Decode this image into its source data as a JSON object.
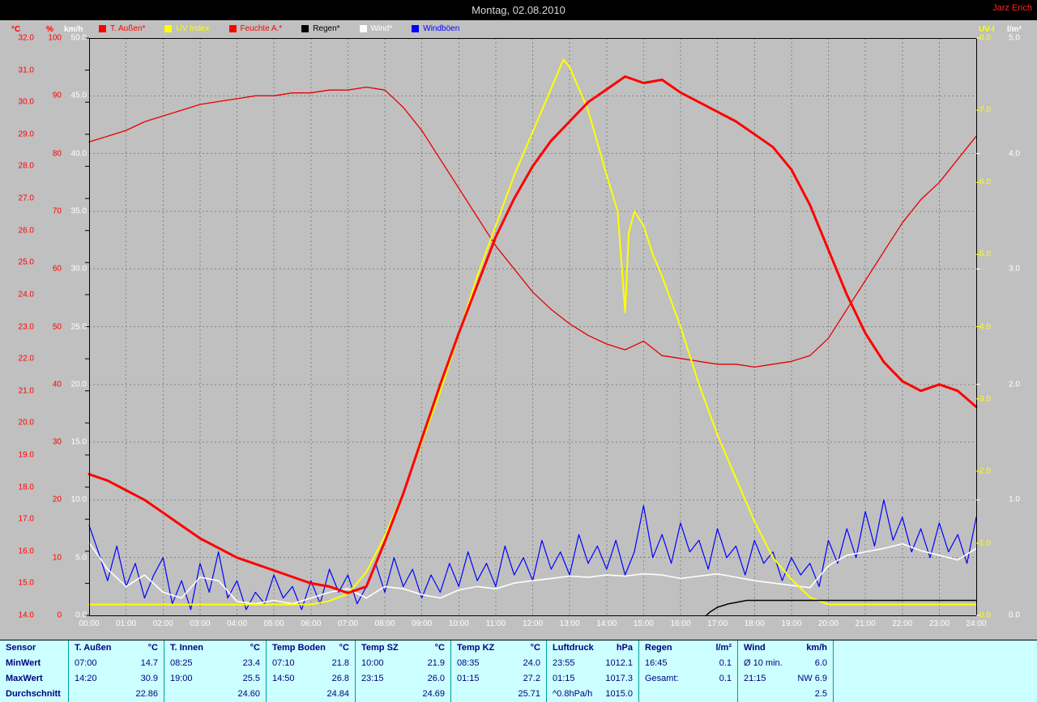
{
  "header": {
    "title": "Montag, 02.08.2010",
    "user": "Jarz Erich"
  },
  "colors": {
    "plot_bg": "#c0c0c0",
    "stats_bg": "#ccffff",
    "titlebar_bg": "#000000",
    "grid": "#858585"
  },
  "chart_data": {
    "type": "line",
    "title": "Montag, 02.08.2010",
    "x_label": "time",
    "x_range": [
      0,
      24
    ],
    "grid": true,
    "background": "#c0c0c0",
    "x_ticks": [
      "00:00",
      "01:00",
      "02:00",
      "03:00",
      "04:00",
      "05:00",
      "06:00",
      "07:00",
      "08:00",
      "09:00",
      "10:00",
      "11:00",
      "12:00",
      "13:00",
      "14:00",
      "15:00",
      "16:00",
      "17:00",
      "18:00",
      "19:00",
      "20:00",
      "21:00",
      "22:00",
      "23:00",
      "24:00"
    ],
    "axes": {
      "temp": {
        "unit": "°C",
        "color": "#ff0000",
        "min": 14,
        "max": 32,
        "step": 1,
        "decimals": 1,
        "side": "left"
      },
      "humidity": {
        "unit": "%",
        "color": "#ff0000",
        "min": 0,
        "max": 100,
        "step": 10,
        "decimals": 0,
        "side": "left"
      },
      "wind": {
        "unit": "km/h",
        "color": "#ffffff",
        "min": 0,
        "max": 50,
        "step": 5,
        "decimals": 1,
        "side": "left"
      },
      "uv": {
        "unit": "UV-I",
        "color": "#ffff00",
        "min": 0,
        "max": 8,
        "step": 1,
        "decimals": 1,
        "side": "right"
      },
      "rain": {
        "unit": "l/m²",
        "color": "#ffffff",
        "min": 0,
        "max": 5,
        "step": 1,
        "decimals": 1,
        "side": "right"
      }
    },
    "legend": [
      {
        "label": "T. Außen*",
        "color": "#ff0000"
      },
      {
        "label": "UV Index",
        "color": "#ffff00"
      },
      {
        "label": "Feuchte A.*",
        "color": "#ff0000"
      },
      {
        "label": "Regen*",
        "color": "#000000"
      },
      {
        "label": "Wind*",
        "color": "#ffffff"
      },
      {
        "label": "Windböen",
        "color": "#0000ff"
      }
    ],
    "series": [
      {
        "name": "Windböen",
        "axis": "wind",
        "color": "#0000ff",
        "width": 1.2,
        "x_start": 0,
        "x_step": 0.25,
        "y": [
          7.8,
          5.5,
          3.0,
          6.0,
          2.5,
          4.5,
          1.5,
          3.5,
          5.0,
          1.0,
          3.0,
          0.5,
          4.5,
          2.0,
          5.5,
          1.5,
          3.0,
          0.5,
          2.0,
          1.0,
          3.5,
          1.5,
          2.5,
          0.5,
          3.0,
          1.0,
          4.0,
          2.0,
          3.5,
          1.0,
          2.5,
          4.5,
          2.0,
          5.0,
          2.5,
          4.0,
          1.5,
          3.5,
          2.0,
          4.5,
          2.5,
          5.5,
          3.0,
          4.5,
          2.5,
          6.0,
          3.5,
          5.0,
          3.0,
          6.5,
          4.0,
          5.5,
          3.5,
          7.0,
          4.5,
          6.0,
          4.0,
          6.5,
          3.5,
          5.5,
          9.5,
          5.0,
          7.0,
          4.5,
          8.0,
          5.5,
          6.5,
          4.0,
          7.5,
          5.0,
          6.0,
          3.5,
          6.5,
          4.5,
          5.5,
          3.0,
          5.0,
          3.5,
          4.5,
          2.5,
          6.5,
          4.5,
          7.5,
          5.0,
          9.0,
          6.0,
          10.0,
          6.5,
          8.5,
          5.5,
          7.5,
          5.0,
          8.0,
          5.5,
          7.0,
          4.5,
          8.5
        ]
      },
      {
        "name": "Wind",
        "axis": "wind",
        "color": "#ffffff",
        "width": 1.6,
        "x_start": 0,
        "x_step": 0.5,
        "y": [
          6.3,
          4.0,
          2.5,
          3.5,
          2.0,
          1.5,
          3.3,
          3.0,
          1.2,
          1.0,
          1.3,
          1.0,
          1.5,
          2.0,
          2.3,
          1.5,
          2.5,
          2.3,
          1.8,
          1.5,
          2.2,
          2.5,
          2.3,
          2.8,
          3.0,
          3.2,
          3.4,
          3.3,
          3.5,
          3.4,
          3.6,
          3.5,
          3.2,
          3.4,
          3.6,
          3.3,
          3.0,
          2.8,
          2.6,
          2.4,
          4.3,
          5.2,
          5.5,
          5.8,
          6.2,
          5.6,
          5.2,
          4.8,
          5.8
        ]
      },
      {
        "name": "Feuchte A.",
        "axis": "humidity",
        "color": "#e80000",
        "width": 1.3,
        "x_start": 0,
        "x_step": 0.5,
        "y": [
          82,
          83,
          84,
          85.5,
          86.5,
          87.5,
          88.5,
          89,
          89.5,
          90,
          90,
          90.5,
          90.5,
          91,
          91,
          91.5,
          91,
          88,
          84,
          79,
          74,
          69,
          64,
          60,
          56,
          53,
          50.5,
          48.5,
          47,
          46,
          47.5,
          45,
          44.5,
          44,
          43.5,
          43.5,
          43,
          43.5,
          44,
          45,
          48,
          53,
          58,
          63,
          68,
          72,
          75,
          79,
          83
        ]
      },
      {
        "name": "UV Index",
        "axis": "uv",
        "color": "#ffff00",
        "width": 2,
        "x": [
          0,
          6,
          6.5,
          7,
          7.5,
          8,
          8.5,
          9,
          9.5,
          10,
          10.5,
          11,
          11.5,
          12,
          12.5,
          12.83,
          13,
          13.5,
          14,
          14.3,
          14.5,
          14.6,
          14.75,
          15,
          15.25,
          15.5,
          16,
          16.5,
          17,
          17.5,
          18,
          18.5,
          19,
          19.5,
          20,
          24
        ],
        "y": [
          0.15,
          0.15,
          0.2,
          0.3,
          0.6,
          1.1,
          1.7,
          2.4,
          3.1,
          3.9,
          4.7,
          5.4,
          6.1,
          6.7,
          7.3,
          7.7,
          7.6,
          7.0,
          6.1,
          5.6,
          4.2,
          5.3,
          5.6,
          5.4,
          5.0,
          4.7,
          4.0,
          3.2,
          2.5,
          1.9,
          1.3,
          0.8,
          0.5,
          0.25,
          0.15,
          0.15
        ]
      },
      {
        "name": "T. Außen",
        "axis": "temp",
        "color": "#ff0000",
        "width": 3,
        "x_start": 0,
        "x_step": 0.5,
        "y": [
          18.4,
          18.2,
          17.9,
          17.6,
          17.2,
          16.8,
          16.4,
          16.1,
          15.8,
          15.6,
          15.4,
          15.2,
          15.0,
          14.9,
          14.7,
          14.9,
          16.3,
          17.8,
          19.5,
          21.2,
          22.8,
          24.3,
          25.8,
          27.0,
          28.0,
          28.8,
          29.4,
          30.0,
          30.4,
          30.8,
          30.6,
          30.7,
          30.3,
          30.0,
          29.7,
          29.4,
          29.0,
          28.6,
          27.9,
          26.8,
          25.4,
          24.0,
          22.8,
          21.9,
          21.3,
          21.0,
          21.2,
          21.0,
          20.5
        ]
      },
      {
        "name": "Regen",
        "axis": "rain",
        "color": "#000000",
        "width": 1.5,
        "x": [
          16.7,
          16.8,
          17.0,
          17.3,
          17.8,
          24
        ],
        "y": [
          0.0,
          0.03,
          0.07,
          0.1,
          0.13,
          0.13
        ]
      }
    ]
  },
  "stats": {
    "row_labels": [
      "Sensor",
      "MinWert",
      "MaxWert",
      "Durchschnitt"
    ],
    "columns": [
      {
        "name": "T. Außen",
        "unit": "°C",
        "min": {
          "time": "07:00",
          "value": "14.7"
        },
        "max": {
          "time": "14:20",
          "value": "30.9"
        },
        "avg": {
          "label": "",
          "value": "22.86"
        }
      },
      {
        "name": "T. Innen",
        "unit": "°C",
        "min": {
          "time": "08:25",
          "value": "23.4"
        },
        "max": {
          "time": "19:00",
          "value": "25.5"
        },
        "avg": {
          "label": "",
          "value": "24.60"
        }
      },
      {
        "name": "Temp Boden",
        "unit": "°C",
        "min": {
          "time": "07:10",
          "value": "21.8"
        },
        "max": {
          "time": "14:50",
          "value": "26.8"
        },
        "avg": {
          "label": "",
          "value": "24.84"
        }
      },
      {
        "name": "Temp SZ",
        "unit": "°C",
        "min": {
          "time": "10:00",
          "value": "21.9"
        },
        "max": {
          "time": "23:15",
          "value": "26.0"
        },
        "avg": {
          "label": "",
          "value": "24.69"
        }
      },
      {
        "name": "Temp KZ",
        "unit": "°C",
        "min": {
          "time": "08:35",
          "value": "24.0"
        },
        "max": {
          "time": "01:15",
          "value": "27.2"
        },
        "avg": {
          "label": "",
          "value": "25.71"
        }
      },
      {
        "name": "Luftdruck",
        "unit": "hPa",
        "min": {
          "time": "23:55",
          "value": "1012.1"
        },
        "max": {
          "time": "01:15",
          "value": "1017.3"
        },
        "avg": {
          "label": "^0.8hPa/h",
          "value": "1015.0"
        }
      },
      {
        "name": "Regen",
        "unit": "l/m²",
        "min": {
          "time": "16:45",
          "value": "0.1"
        },
        "max": {
          "time": "Gesamt:",
          "value": "0.1"
        },
        "avg": {
          "label": "",
          "value": ""
        }
      },
      {
        "name": "Wind",
        "unit": "km/h",
        "min": {
          "time": "Ø 10 min.",
          "value": "6.0"
        },
        "max": {
          "time": "21:15",
          "value": "NW 6.9"
        },
        "avg": {
          "label": "",
          "value": "2.5"
        }
      }
    ]
  }
}
